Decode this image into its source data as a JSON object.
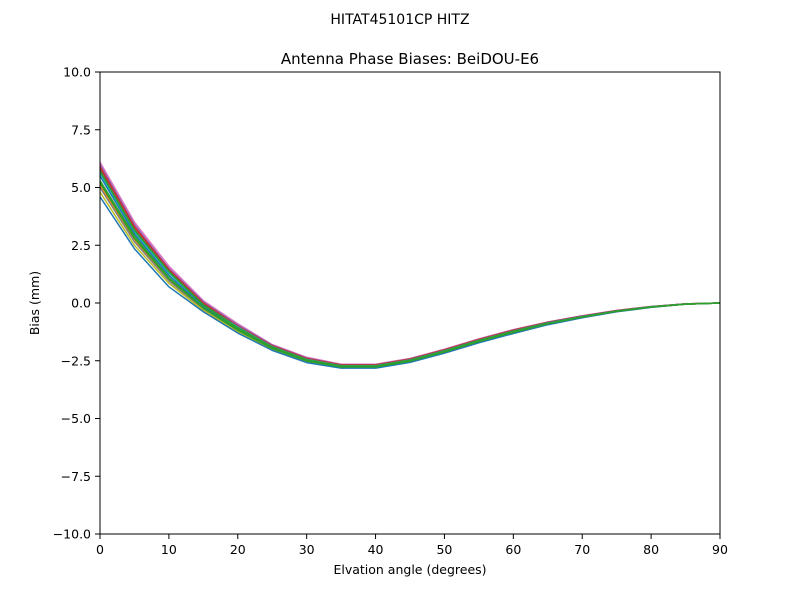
{
  "chart_data": {
    "type": "line",
    "suptitle": "HITAT45101CP    HITZ",
    "title": "Antenna Phase Biases: BeiDOU-E6",
    "xlabel": "Elvation angle (degrees)",
    "ylabel": "Bias (mm)",
    "xlim": [
      0,
      90
    ],
    "ylim": [
      -10,
      10
    ],
    "xticks": [
      0,
      10,
      20,
      30,
      40,
      50,
      60,
      70,
      80,
      90
    ],
    "xtick_labels": [
      "0",
      "10",
      "20",
      "30",
      "40",
      "50",
      "60",
      "70",
      "80",
      "90"
    ],
    "yticks": [
      -10,
      -7.5,
      -5,
      -2.5,
      0,
      2.5,
      5,
      7.5,
      10
    ],
    "ytick_labels": [
      "−10.0",
      "−7.5",
      "−5.0",
      "−2.5",
      "0.0",
      "2.5",
      "5.0",
      "7.5",
      "10.0"
    ],
    "grid": false,
    "legend": "none",
    "x": [
      0,
      5,
      10,
      15,
      20,
      25,
      30,
      35,
      40,
      45,
      50,
      55,
      60,
      65,
      70,
      75,
      80,
      85,
      90
    ],
    "series": [
      {
        "color": "#e377c2",
        "values": [
          6.1,
          3.5,
          1.6,
          0.1,
          -0.9,
          -1.8,
          -2.35,
          -2.65,
          -2.65,
          -2.4,
          -2.0,
          -1.55,
          -1.15,
          -0.82,
          -0.55,
          -0.32,
          -0.15,
          -0.04,
          0.0
        ]
      },
      {
        "color": "#9467bd",
        "values": [
          6.0,
          3.4,
          1.5,
          0.05,
          -0.95,
          -1.82,
          -2.38,
          -2.67,
          -2.67,
          -2.42,
          -2.02,
          -1.57,
          -1.17,
          -0.83,
          -0.56,
          -0.33,
          -0.15,
          -0.04,
          0.0
        ]
      },
      {
        "color": "#d62728",
        "values": [
          5.9,
          3.3,
          1.45,
          0.0,
          -1.0,
          -1.85,
          -2.4,
          -2.68,
          -2.68,
          -2.43,
          -2.03,
          -1.58,
          -1.18,
          -0.84,
          -0.57,
          -0.33,
          -0.16,
          -0.04,
          0.0
        ]
      },
      {
        "color": "#8c564b",
        "values": [
          5.8,
          3.2,
          1.4,
          -0.05,
          -1.02,
          -1.87,
          -2.42,
          -2.7,
          -2.7,
          -2.45,
          -2.05,
          -1.6,
          -1.2,
          -0.85,
          -0.58,
          -0.34,
          -0.16,
          -0.04,
          0.0
        ]
      },
      {
        "color": "#17becf",
        "values": [
          5.6,
          3.1,
          1.3,
          -0.1,
          -1.05,
          -1.9,
          -2.45,
          -2.72,
          -2.72,
          -2.47,
          -2.07,
          -1.62,
          -1.22,
          -0.87,
          -0.59,
          -0.35,
          -0.17,
          -0.05,
          0.0
        ]
      },
      {
        "color": "#1f77b4",
        "values": [
          5.5,
          3.0,
          1.2,
          -0.15,
          -1.1,
          -1.92,
          -2.47,
          -2.74,
          -2.74,
          -2.49,
          -2.09,
          -1.64,
          -1.24,
          -0.88,
          -0.6,
          -0.35,
          -0.17,
          -0.05,
          0.0
        ]
      },
      {
        "color": "#2ca02c",
        "values": [
          5.3,
          2.9,
          1.1,
          -0.2,
          -1.15,
          -1.95,
          -2.5,
          -2.76,
          -2.76,
          -2.51,
          -2.11,
          -1.66,
          -1.26,
          -0.9,
          -0.61,
          -0.36,
          -0.17,
          -0.05,
          0.0
        ]
      },
      {
        "color": "#ff7f0e",
        "values": [
          5.1,
          2.75,
          1.0,
          -0.25,
          -1.2,
          -1.98,
          -2.52,
          -2.78,
          -2.78,
          -2.53,
          -2.13,
          -1.68,
          -1.28,
          -0.91,
          -0.62,
          -0.36,
          -0.18,
          -0.05,
          0.0
        ]
      },
      {
        "color": "#7f7f7f",
        "values": [
          5.0,
          2.65,
          0.95,
          -0.28,
          -1.22,
          -2.0,
          -2.54,
          -2.79,
          -2.79,
          -2.54,
          -2.14,
          -1.69,
          -1.29,
          -0.92,
          -0.62,
          -0.37,
          -0.18,
          -0.05,
          0.0
        ]
      },
      {
        "color": "#bcbd22",
        "values": [
          4.8,
          2.5,
          0.85,
          -0.32,
          -1.25,
          -2.02,
          -2.56,
          -2.8,
          -2.8,
          -2.55,
          -2.15,
          -1.7,
          -1.3,
          -0.93,
          -0.63,
          -0.37,
          -0.18,
          -0.05,
          0.0
        ]
      },
      {
        "color": "#1f77b4",
        "values": [
          4.6,
          2.35,
          0.7,
          -0.38,
          -1.3,
          -2.05,
          -2.58,
          -2.82,
          -2.82,
          -2.57,
          -2.17,
          -1.72,
          -1.32,
          -0.94,
          -0.64,
          -0.38,
          -0.19,
          -0.05,
          0.0
        ]
      },
      {
        "color": "#2ca02c",
        "values": [
          5.7,
          3.15,
          1.35,
          -0.08,
          -1.08,
          -1.91,
          -2.46,
          -2.73,
          -2.73,
          -2.48,
          -2.08,
          -1.63,
          -1.23,
          -0.88,
          -0.6,
          -0.35,
          -0.17,
          -0.05,
          0.0
        ]
      },
      {
        "color": "#2ca02c",
        "values": [
          5.2,
          2.8,
          1.05,
          -0.22,
          -1.18,
          -1.97,
          -2.51,
          -2.77,
          -2.77,
          -2.52,
          -2.12,
          -1.67,
          -1.27,
          -0.9,
          -0.61,
          -0.36,
          -0.18,
          -0.05,
          0.0
        ]
      }
    ]
  }
}
